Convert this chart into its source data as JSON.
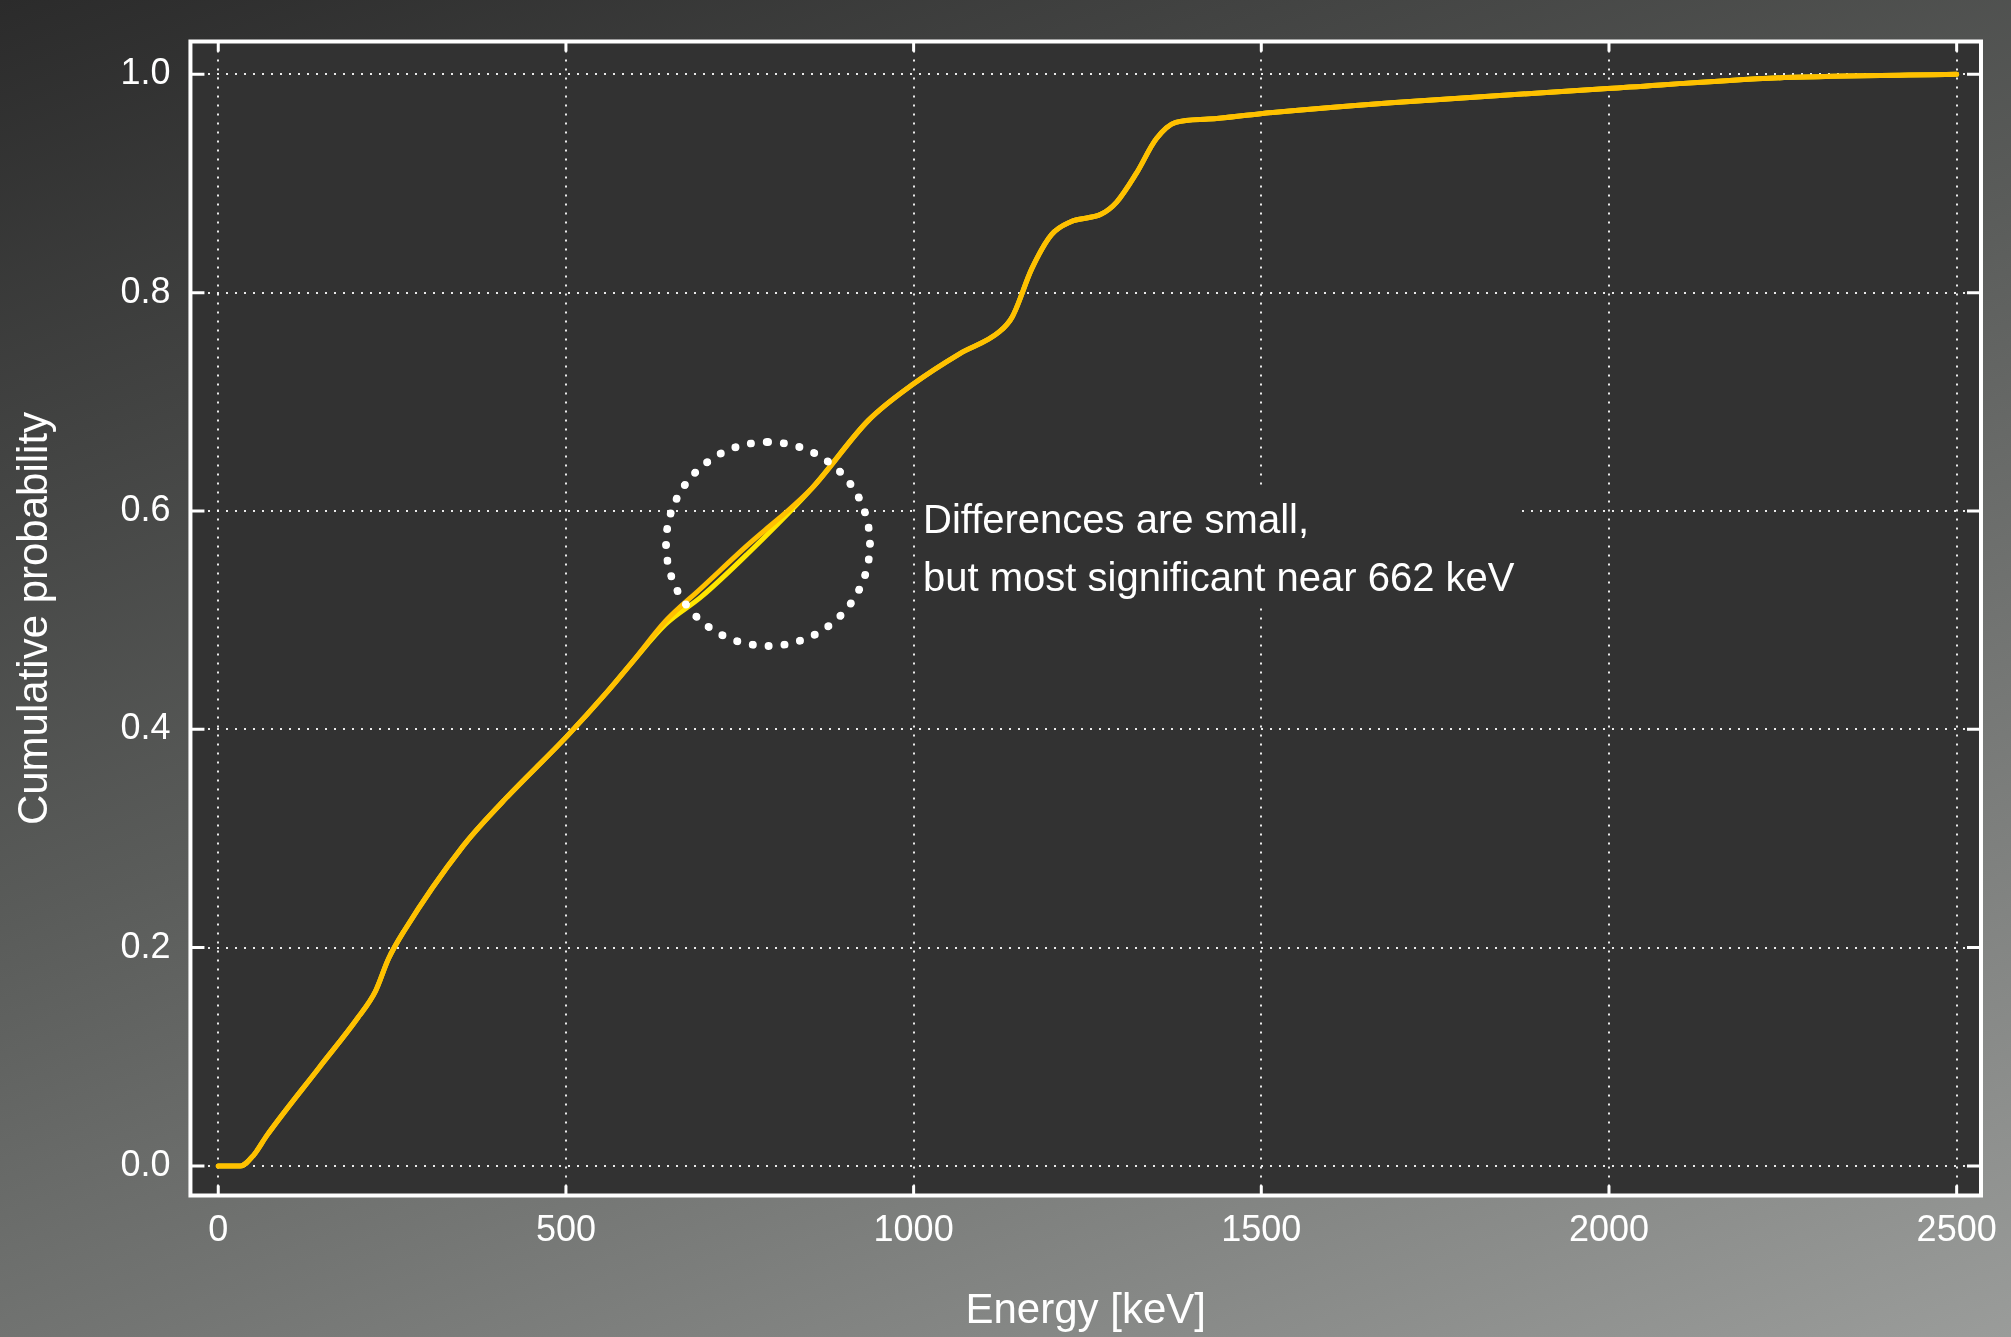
{
  "chart_data": {
    "type": "line",
    "xlabel": "Energy [keV]",
    "ylabel": "Cumulative probability",
    "x": [
      0,
      32,
      51,
      70,
      145,
      201,
      226,
      245,
      267,
      352,
      408,
      502,
      559,
      596,
      643,
      694,
      760,
      854,
      935,
      1001,
      1066,
      1123,
      1142,
      1170,
      1198,
      1226,
      1270,
      1292,
      1320,
      1349,
      1377,
      1424,
      1499,
      1687,
      1998,
      2252,
      2500
    ],
    "series": [
      {
        "color": "#ffc000",
        "values": [
          0,
          0,
          0.01,
          0.028,
          0.09,
          0.136,
          0.16,
          0.19,
          0.215,
          0.293,
          0.333,
          0.394,
          0.434,
          0.462,
          0.499,
          0.529,
          0.568,
          0.621,
          0.683,
          0.717,
          0.744,
          0.764,
          0.778,
          0.822,
          0.853,
          0.865,
          0.872,
          0.883,
          0.909,
          0.941,
          0.956,
          0.959,
          0.964,
          0.974,
          0.987,
          0.997,
          1.0
        ]
      },
      {
        "color": "#ffe600",
        "values": [
          0,
          0,
          0.01,
          0.028,
          0.09,
          0.136,
          0.16,
          0.19,
          0.215,
          0.293,
          0.333,
          0.394,
          0.434,
          0.462,
          0.496,
          0.521,
          0.56,
          0.621,
          0.683,
          0.717,
          0.744,
          0.764,
          0.778,
          0.822,
          0.853,
          0.865,
          0.872,
          0.883,
          0.909,
          0.941,
          0.956,
          0.959,
          0.964,
          0.974,
          0.987,
          0.997,
          1.0
        ]
      }
    ],
    "xlim": [
      -40,
      2535
    ],
    "xticks": [
      0,
      500,
      1000,
      1500,
      2000,
      2500
    ],
    "ylim": [
      -0.027,
      1.03
    ],
    "yticks": [
      {
        "value": 0,
        "label": "0.0"
      },
      {
        "value": 0.2,
        "label": "0.2"
      },
      {
        "value": 0.4,
        "label": "0.4"
      },
      {
        "value": 0.6,
        "label": "0.6"
      },
      {
        "value": 0.8,
        "label": "0.8"
      },
      {
        "value": 1,
        "label": "1.0"
      }
    ],
    "grid": true,
    "legend": false,
    "marker": "none",
    "line_style": "solid",
    "annotations": [
      "Differences are small,\nbut most significant near 662 keV"
    ]
  }
}
